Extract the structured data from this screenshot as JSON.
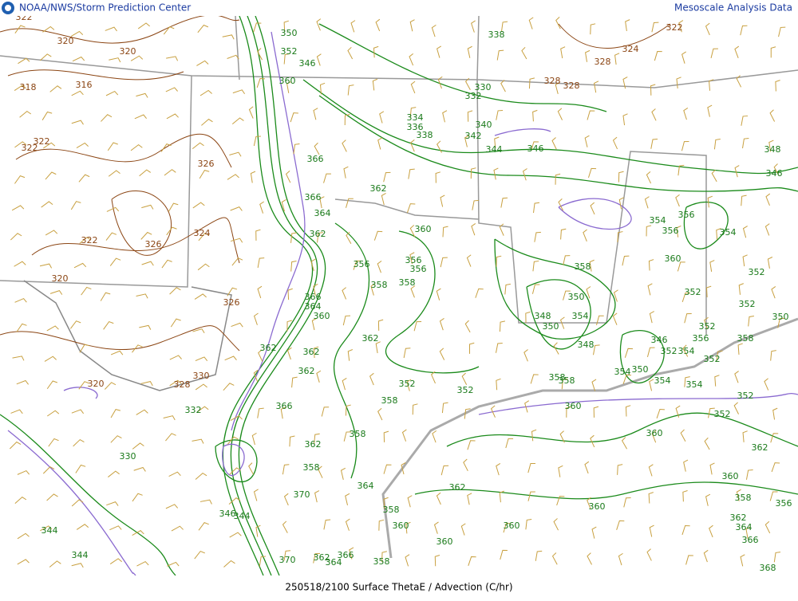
{
  "header": {
    "left": "NOAA/NWS/Storm Prediction Center",
    "right": "Mesoscale Analysis Data"
  },
  "footer": {
    "caption": "250518/2100 Surface ThetaE / Advection (C/hr)"
  },
  "contour_labels": [
    322,
    320,
    320,
    318,
    316,
    322,
    322,
    326,
    324,
    322,
    326,
    320,
    326,
    330,
    328,
    320,
    332,
    330,
    344,
    344,
    346,
    344,
    322,
    324,
    328,
    338,
    330,
    332,
    328,
    328,
    334,
    336,
    338,
    340,
    342,
    344,
    346,
    350,
    352,
    346,
    360,
    366,
    366,
    364,
    362,
    362,
    360,
    356,
    356,
    356,
    358,
    358,
    366,
    364,
    360,
    362,
    362,
    362,
    362,
    352,
    352,
    358,
    366,
    358,
    362,
    358,
    370,
    364,
    358,
    360,
    370,
    362,
    366,
    364,
    358,
    362,
    360,
    360,
    360,
    348,
    346,
    354,
    356,
    356,
    354,
    358,
    360,
    352,
    352,
    352,
    350,
    350,
    348,
    354,
    350,
    348,
    346,
    356,
    358,
    352,
    352,
    354,
    352,
    350,
    354,
    358,
    358,
    354,
    354,
    360,
    352,
    352,
    360,
    362,
    360,
    358,
    356,
    362,
    364,
    366,
    368
  ]
}
